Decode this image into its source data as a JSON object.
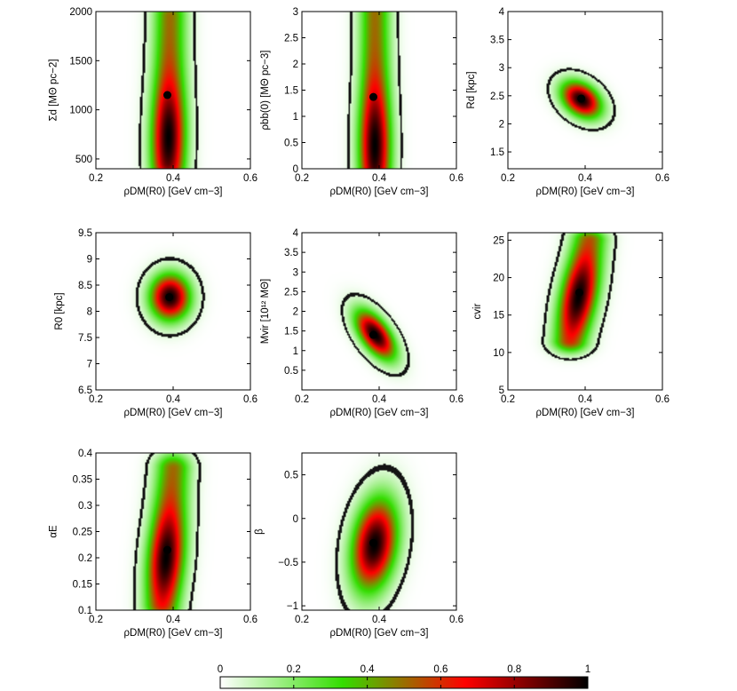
{
  "chart_data": {
    "type": "heatmap",
    "description_kind": "2D marginal posterior density panels",
    "colormap": {
      "stops": [
        "#ffffff",
        "#33dd00",
        "#ff0000",
        "#000000"
      ],
      "ticks": [
        "0",
        "0.2",
        "0.4",
        "0.6",
        "0.8",
        "1"
      ],
      "range": [
        0,
        1
      ]
    },
    "panels": [
      {
        "id": "sigma_d",
        "xlabel": "ρDM(R0) [GeV cm−3]",
        "ylabel": "Σd [MΘ pc−2]",
        "xlim": [
          0.2,
          0.6
        ],
        "ylim": [
          400,
          2000
        ],
        "xticks": [
          "0.2",
          "0.4",
          "0.6"
        ],
        "xtick_values": [
          0.2,
          0.4,
          0.6
        ],
        "yticks": [
          "500",
          "1000",
          "1500",
          "2000"
        ],
        "ytick_values": [
          500,
          1000,
          1500,
          2000
        ],
        "peak": [
          0.385,
          1150
        ],
        "density": {
          "type": "bar",
          "x0": 0.387,
          "x1": 0.392,
          "y0": 450,
          "y1": 1950,
          "sx": 0.03,
          "sy": 380,
          "tilt": 0.0025,
          "inner_y": 720,
          "inner_sy": 380,
          "contour": 0.05
        }
      },
      {
        "id": "rho_bb",
        "xlabel": "ρDM(R0) [GeV cm−3]",
        "ylabel": "ρbb(0) [MΘ pc−3]",
        "xlim": [
          0.2,
          0.6
        ],
        "ylim": [
          0,
          3
        ],
        "xticks": [
          "0.2",
          "0.4",
          "0.6"
        ],
        "xtick_values": [
          0.2,
          0.4,
          0.6
        ],
        "yticks": [
          "0",
          "0.5",
          "1",
          "1.5",
          "2",
          "2.5",
          "3"
        ],
        "ytick_values": [
          0,
          0.5,
          1,
          1.5,
          2,
          2.5,
          3
        ],
        "peak": [
          0.385,
          1.37
        ],
        "density": {
          "type": "bar",
          "x0": 0.389,
          "x1": 0.389,
          "y0": 0.05,
          "y1": 2.95,
          "sx": 0.028,
          "sy": 0.7,
          "tilt": 0.0,
          "inner_y": 0.45,
          "inner_sy": 0.75,
          "contour": 0.05
        }
      },
      {
        "id": "r_d",
        "xlabel": "ρDM(R0) [GeV cm−3]",
        "ylabel": "Rd [kpc]",
        "xlim": [
          0.2,
          0.6
        ],
        "ylim": [
          1.2,
          4
        ],
        "xticks": [
          "0.2",
          "0.4",
          "0.6"
        ],
        "xtick_values": [
          0.2,
          0.4,
          0.6
        ],
        "yticks": [
          "1.5",
          "2",
          "2.5",
          "3",
          "3.5",
          "4"
        ],
        "ytick_values": [
          1.5,
          2,
          2.5,
          3,
          3.5,
          4
        ],
        "peak": [
          0.39,
          2.45
        ],
        "density": {
          "type": "gauss",
          "cx": 0.39,
          "cy": 2.43,
          "sx": 0.035,
          "sy": 0.22,
          "rho": -0.35,
          "contour": 0.05
        }
      },
      {
        "id": "r_0",
        "xlabel": "ρDM(R0) [GeV cm−3]",
        "ylabel": "R0 [kpc]",
        "xlim": [
          0.2,
          0.6
        ],
        "ylim": [
          6.5,
          9.5
        ],
        "xticks": [
          "0.2",
          "0.4",
          "0.6"
        ],
        "xtick_values": [
          0.2,
          0.4,
          0.6
        ],
        "yticks": [
          "6.5",
          "7",
          "7.5",
          "8",
          "8.5",
          "9",
          "9.5"
        ],
        "ytick_values": [
          6.5,
          7,
          7.5,
          8,
          8.5,
          9,
          9.5
        ],
        "peak": [
          0.39,
          8.27
        ],
        "density": {
          "type": "gauss",
          "cx": 0.392,
          "cy": 8.27,
          "sx": 0.035,
          "sy": 0.3,
          "rho": 0.0,
          "contour": 0.05
        }
      },
      {
        "id": "m_vir",
        "xlabel": "ρDM(R0) [GeV cm−3]",
        "ylabel": "Mvir [10¹² MΘ]",
        "xlim": [
          0.2,
          0.6
        ],
        "ylim": [
          0,
          4
        ],
        "xticks": [
          "0.2",
          "0.4",
          "0.6"
        ],
        "xtick_values": [
          0.2,
          0.4,
          0.6
        ],
        "yticks": [
          "0.5",
          "1",
          "1.5",
          "2",
          "2.5",
          "3",
          "3.5",
          "4"
        ],
        "ytick_values": [
          0.5,
          1,
          1.5,
          2,
          2.5,
          3,
          3.5,
          4
        ],
        "peak": [
          0.385,
          1.4
        ],
        "density": {
          "type": "gauss",
          "cx": 0.39,
          "cy": 1.4,
          "sx": 0.035,
          "sy": 0.42,
          "rho": -0.6,
          "contour": 0.05
        }
      },
      {
        "id": "c_vir",
        "xlabel": "ρDM(R0) [GeV cm−3]",
        "ylabel": "cvir",
        "xlim": [
          0.2,
          0.6
        ],
        "ylim": [
          5,
          26
        ],
        "xticks": [
          "0.2",
          "0.4",
          "0.6"
        ],
        "xtick_values": [
          0.2,
          0.4,
          0.6
        ],
        "yticks": [
          "5",
          "10",
          "15",
          "20",
          "25"
        ],
        "ytick_values": [
          5,
          10,
          15,
          20,
          25
        ],
        "peak": [
          0.385,
          18
        ],
        "density": {
          "type": "bar",
          "x0": 0.362,
          "x1": 0.41,
          "y0": 11.5,
          "y1": 25,
          "sx": 0.032,
          "sy": 3.2,
          "tilt": 0.0,
          "inner_y": 17.5,
          "inner_sy": 3.5,
          "contour": 0.05
        }
      },
      {
        "id": "alpha_e",
        "xlabel": "ρDM(R0) [GeV cm−3]",
        "ylabel": "αE",
        "xlim": [
          0.2,
          0.6
        ],
        "ylim": [
          0.1,
          0.4
        ],
        "xticks": [
          "0.2",
          "0.4",
          "0.6"
        ],
        "xtick_values": [
          0.2,
          0.4,
          0.6
        ],
        "yticks": [
          "0.1",
          "0.15",
          "0.2",
          "0.25",
          "0.3",
          "0.35",
          "0.4"
        ],
        "ytick_values": [
          0.1,
          0.15,
          0.2,
          0.25,
          0.3,
          0.35,
          0.4
        ],
        "peak": [
          0.385,
          0.215
        ],
        "density": {
          "type": "bar",
          "x0": 0.372,
          "x1": 0.4,
          "y0": 0.11,
          "y1": 0.37,
          "sx": 0.032,
          "sy": 0.06,
          "tilt": 0.0,
          "inner_y": 0.2,
          "inner_sy": 0.06,
          "contour": 0.05
        }
      },
      {
        "id": "beta",
        "xlabel": "ρDM(R0) [GeV cm−3]",
        "ylabel": "β",
        "xlim": [
          0.2,
          0.6
        ],
        "ylim": [
          -1.05,
          0.75
        ],
        "xticks": [
          "0.2",
          "0.4",
          "0.6"
        ],
        "xtick_values": [
          0.2,
          0.4,
          0.6
        ],
        "yticks": [
          "−1",
          "−0.5",
          "0",
          "0.5"
        ],
        "ytick_values": [
          -1,
          -0.5,
          0,
          0.5
        ],
        "peak": [
          0.385,
          -0.28
        ],
        "density": {
          "type": "gauss",
          "cx": 0.388,
          "cy": -0.3,
          "sx": 0.04,
          "sy": 0.36,
          "rho": 0.25,
          "contour": 0.05
        }
      }
    ]
  }
}
